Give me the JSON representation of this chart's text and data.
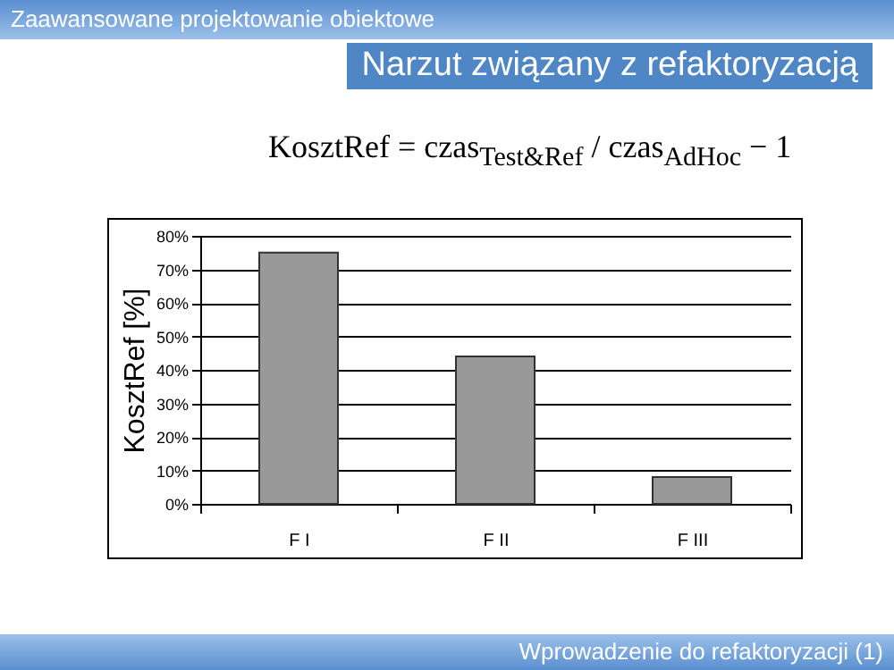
{
  "chart_data": {
    "type": "bar",
    "title": "Narzut związany z refaktoryzacją",
    "ylabel": "KosztRef [%]",
    "annotations": [
      "Zaawansowane projektowanie obiektowe",
      "KosztRef = czas$_{Test&Ref}$ / czas$_{AdHoc}$ − 1",
      "Wprowadzenie do refaktoryzacji (1)"
    ],
    "categories": [
      "F I",
      "F II",
      "F III"
    ],
    "values": [
      75,
      44,
      8
    ],
    "color": "#999999",
    "ylim": [
      0,
      80
    ],
    "yticks": [
      {
        "value": 0,
        "label": "0%"
      },
      {
        "value": 10,
        "label": "10%"
      },
      {
        "value": 20,
        "label": "20%"
      },
      {
        "value": 30,
        "label": "30%"
      },
      {
        "value": 40,
        "label": "40%"
      },
      {
        "value": 50,
        "label": "50%"
      },
      {
        "value": 60,
        "label": "60%"
      },
      {
        "value": 70,
        "label": "70%"
      },
      {
        "value": 80,
        "label": "80%"
      }
    ],
    "grid": "y"
  }
}
